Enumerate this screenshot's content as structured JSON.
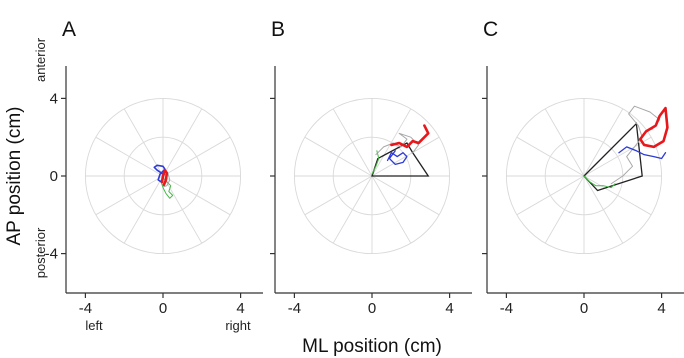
{
  "chart_data": {
    "type": "line",
    "xlabel": "ML position (cm)",
    "ylabel": "AP position (cm)",
    "xlim": [
      -5,
      5
    ],
    "ylim": [
      -5,
      5
    ],
    "x_ticks": [
      "-4",
      "0",
      "4"
    ],
    "y_ticks": [
      "4",
      "0",
      "-4"
    ],
    "x_tick_values": [
      -4,
      0,
      4
    ],
    "y_tick_values": [
      4,
      0,
      -4
    ],
    "direction_labels": {
      "left": "left",
      "right": "right",
      "anterior": "anterior",
      "posterior": "posterior"
    },
    "grid": "polar",
    "polar_grid": {
      "radii": [
        2,
        4
      ],
      "spoke_angles_deg": [
        0,
        30,
        60,
        90,
        120,
        150,
        180,
        210,
        240,
        270,
        300,
        330
      ]
    },
    "colors": {
      "red": "#e8171b",
      "blue": "#2e3bd8",
      "green": "#48b848",
      "gray": "#a8a8a8",
      "black": "#222222"
    },
    "panels": [
      {
        "label": "A",
        "traces": [
          {
            "color": "#48b848",
            "width": 1.0,
            "points": [
              [
                0,
                -0.1
              ],
              [
                0.2,
                -0.3
              ],
              [
                0.4,
                -0.5
              ],
              [
                0.3,
                -0.8
              ],
              [
                0.5,
                -1.0
              ],
              [
                0.35,
                -1.15
              ],
              [
                0.15,
                -0.9
              ],
              [
                0,
                -0.6
              ],
              [
                -0.1,
                -0.3
              ]
            ]
          },
          {
            "color": "#a8a8a8",
            "width": 1.0,
            "points": [
              [
                0,
                0
              ],
              [
                0.25,
                0.15
              ],
              [
                0.35,
                -0.2
              ],
              [
                0.2,
                -0.5
              ],
              [
                0.05,
                -0.55
              ],
              [
                -0.05,
                -0.3
              ]
            ]
          },
          {
            "color": "#2e3bd8",
            "width": 1.6,
            "points": [
              [
                0,
                0.1
              ],
              [
                -0.3,
                0.3
              ],
              [
                -0.45,
                0.45
              ],
              [
                -0.3,
                0.55
              ],
              [
                0,
                0.5
              ],
              [
                0.1,
                0.35
              ],
              [
                -0.15,
                0.1
              ],
              [
                -0.25,
                -0.2
              ],
              [
                -0.1,
                -0.3
              ],
              [
                0,
                -0.1
              ]
            ]
          },
          {
            "color": "#e8171b",
            "width": 2.6,
            "points": [
              [
                -0.05,
                -0.3
              ],
              [
                0,
                0
              ],
              [
                0.1,
                0.3
              ],
              [
                0.2,
                0.15
              ],
              [
                0.15,
                -0.2
              ],
              [
                0.05,
                -0.45
              ]
            ]
          }
        ]
      },
      {
        "label": "B",
        "hull": [
          [
            0,
            0
          ],
          [
            0.3,
            0.9
          ],
          [
            1.8,
            1.7
          ],
          [
            2.1,
            1.2
          ],
          [
            2.9,
            0
          ]
        ],
        "traces": [
          {
            "color": "#48b848",
            "width": 1.0,
            "points": [
              [
                0,
                0.1
              ],
              [
                0.2,
                0.5
              ],
              [
                0.35,
                0.9
              ],
              [
                0.25,
                1.3
              ]
            ]
          },
          {
            "color": "#a8a8a8",
            "width": 1.0,
            "points": [
              [
                0.2,
                1.1
              ],
              [
                0.6,
                1.5
              ],
              [
                1.1,
                1.7
              ],
              [
                1.5,
                1.5
              ],
              [
                1.8,
                1.9
              ],
              [
                1.4,
                2.2
              ],
              [
                2.0,
                2.0
              ],
              [
                2.4,
                1.6
              ],
              [
                2.1,
                1.2
              ]
            ]
          },
          {
            "color": "#2e3bd8",
            "width": 1.3,
            "points": [
              [
                0.8,
                0.8
              ],
              [
                1.0,
                1.2
              ],
              [
                1.3,
                1.0
              ],
              [
                1.6,
                1.2
              ],
              [
                1.8,
                1.0
              ],
              [
                1.6,
                0.7
              ],
              [
                1.2,
                0.6
              ],
              [
                0.9,
                0.9
              ],
              [
                1.2,
                1.3
              ]
            ]
          },
          {
            "color": "#e8171b",
            "width": 2.6,
            "points": [
              [
                1.0,
                1.6
              ],
              [
                1.4,
                1.7
              ],
              [
                1.8,
                1.5
              ],
              [
                2.1,
                1.8
              ],
              [
                2.4,
                1.7
              ],
              [
                2.9,
                2.2
              ],
              [
                2.7,
                2.6
              ]
            ]
          }
        ]
      },
      {
        "label": "C",
        "hull": [
          [
            0,
            0
          ],
          [
            2.7,
            2.7
          ],
          [
            3.0,
            0
          ],
          [
            0.7,
            -0.75
          ]
        ],
        "traces": [
          {
            "color": "#48b848",
            "width": 1.0,
            "points": [
              [
                0,
                0
              ],
              [
                0.3,
                -0.3
              ],
              [
                0.6,
                -0.5
              ],
              [
                1.0,
                -0.5
              ],
              [
                1.4,
                -0.6
              ],
              [
                1.6,
                -0.4
              ]
            ]
          },
          {
            "color": "#a8a8a8",
            "width": 1.0,
            "points": [
              [
                1.4,
                -0.4
              ],
              [
                2.0,
                0.0
              ],
              [
                2.5,
                0.5
              ],
              [
                2.2,
                1.0
              ],
              [
                2.6,
                1.5
              ],
              [
                3.0,
                2.0
              ],
              [
                2.8,
                2.6
              ],
              [
                2.3,
                3.2
              ],
              [
                2.6,
                3.6
              ],
              [
                3.4,
                3.3
              ],
              [
                3.9,
                2.9
              ],
              [
                3.5,
                2.4
              ]
            ]
          },
          {
            "color": "#2e3bd8",
            "width": 1.3,
            "points": [
              [
                1.8,
                1.2
              ],
              [
                2.2,
                1.5
              ],
              [
                2.7,
                1.3
              ],
              [
                3.1,
                1.1
              ],
              [
                3.6,
                1.0
              ],
              [
                4.0,
                0.9
              ],
              [
                4.2,
                1.2
              ]
            ]
          },
          {
            "color": "#e8171b",
            "width": 2.6,
            "points": [
              [
                2.9,
                1.9
              ],
              [
                3.2,
                2.3
              ],
              [
                3.7,
                2.6
              ],
              [
                3.9,
                3.1
              ],
              [
                4.2,
                3.5
              ],
              [
                4.3,
                2.5
              ],
              [
                4.1,
                1.8
              ],
              [
                3.6,
                1.5
              ],
              [
                3.1,
                1.6
              ],
              [
                2.9,
                1.9
              ]
            ]
          }
        ]
      }
    ]
  }
}
